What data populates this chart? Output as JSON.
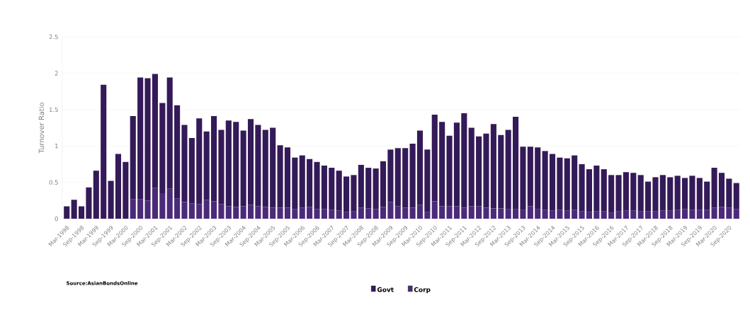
{
  "chart_data": {
    "type": "bar",
    "stacked": true,
    "ylabel": "Turnover Ratio",
    "categories": [
      "Mar-1998",
      null,
      "Sep-1998",
      null,
      "Mar-1999",
      null,
      "Sep-1999",
      null,
      "Mar-2000",
      null,
      "Sep-2000",
      null,
      "Mar-2001",
      null,
      "Sep-2001",
      null,
      "Mar-2002",
      null,
      "Sep-2002",
      null,
      "Mar-2003",
      null,
      "Sep-2003",
      null,
      "Mar-2004",
      null,
      "Sep-2004",
      null,
      "Mar-2005",
      null,
      "Sep-2005",
      null,
      "Mar-2006",
      null,
      "Sep-2006",
      null,
      "Mar-2007",
      null,
      "Sep-2007",
      null,
      "Mar-2008",
      null,
      "Sep-2008",
      null,
      "Mar-2009",
      null,
      "Sep-2009",
      null,
      "Mar-2010",
      null,
      "Sep-2010",
      null,
      "Mar-2011",
      null,
      "Sep-2011",
      null,
      "Mar-2012",
      null,
      "Sep-2012",
      null,
      "Mar-2013",
      null,
      "Sep-2013",
      null,
      "Mar-2014",
      null,
      "Sep-2014",
      null,
      "Mar-2015",
      null,
      "Sep-2015",
      null,
      "Mar-2016",
      null,
      "Sep-2016",
      null,
      "Mar-2017",
      null,
      "Sep-2017",
      null,
      "Mar-2018",
      null,
      "Sep-2018",
      null,
      "Mar-2019",
      null,
      "Sep-2019",
      null,
      "Mar-2020",
      null,
      "Sep-2020",
      null
    ],
    "series": [
      {
        "name": "Corp",
        "color": "#4b2a7a",
        "values": [
          null,
          null,
          null,
          null,
          null,
          null,
          null,
          null,
          null,
          0.27,
          0.27,
          0.25,
          0.42,
          0.35,
          0.41,
          0.28,
          0.23,
          0.21,
          0.2,
          0.26,
          0.24,
          0.2,
          0.17,
          0.16,
          0.17,
          0.19,
          0.17,
          0.16,
          0.15,
          0.15,
          0.15,
          0.13,
          0.15,
          0.16,
          0.13,
          0.13,
          0.12,
          0.11,
          0.09,
          0.1,
          0.15,
          0.14,
          0.13,
          0.16,
          0.23,
          0.17,
          0.15,
          0.15,
          0.19,
          0.09,
          0.24,
          0.17,
          0.17,
          0.17,
          0.15,
          0.17,
          0.17,
          0.15,
          0.14,
          0.14,
          0.13,
          0.13,
          0.12,
          0.17,
          0.13,
          0.12,
          0.11,
          0.12,
          0.11,
          0.12,
          0.1,
          0.09,
          0.1,
          0.1,
          0.08,
          0.1,
          0.11,
          0.11,
          0.1,
          0.1,
          0.1,
          0.11,
          0.11,
          0.12,
          0.13,
          0.12,
          0.12,
          0.12,
          0.15,
          0.16,
          0.15,
          0.13
        ]
      },
      {
        "name": "Govt",
        "color": "#341a58",
        "values": [
          0.17,
          0.26,
          0.17,
          0.43,
          0.66,
          1.84,
          0.52,
          0.89,
          0.78,
          1.14,
          1.67,
          1.68,
          1.57,
          1.24,
          1.53,
          1.28,
          1.06,
          0.9,
          1.18,
          0.94,
          1.17,
          1.02,
          1.18,
          1.17,
          1.04,
          1.18,
          1.12,
          1.06,
          1.1,
          0.86,
          0.83,
          0.71,
          0.72,
          0.66,
          0.65,
          0.6,
          0.58,
          0.55,
          0.49,
          0.5,
          0.59,
          0.56,
          0.56,
          0.63,
          0.72,
          0.8,
          0.82,
          0.88,
          1.02,
          0.86,
          1.19,
          1.16,
          0.97,
          1.15,
          1.3,
          1.08,
          0.96,
          1.02,
          1.16,
          1.01,
          1.09,
          1.27,
          0.87,
          0.82,
          0.85,
          0.81,
          0.78,
          0.72,
          0.72,
          0.75,
          0.65,
          0.59,
          0.63,
          0.58,
          0.52,
          0.5,
          0.53,
          0.52,
          0.5,
          0.41,
          0.47,
          0.49,
          0.46,
          0.47,
          0.43,
          0.47,
          0.44,
          0.39,
          0.55,
          0.47,
          0.4,
          0.36
        ]
      }
    ],
    "ylim": [
      0,
      2.5
    ],
    "yticks": [
      0,
      0.5,
      1,
      1.5,
      2,
      2.5
    ],
    "grid": "y",
    "legend": "bottom",
    "annotations": [
      "Source:AsianBondsOnline"
    ]
  }
}
